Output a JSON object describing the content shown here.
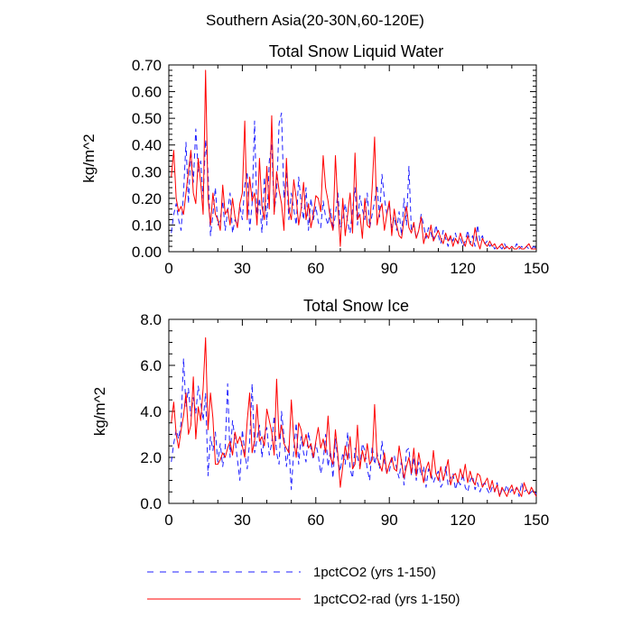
{
  "colors": {
    "blue": "#1f1fff",
    "red": "#ff0000",
    "axis": "#000000"
  },
  "chart_data": {
    "title": "Southern Asia(20-30N,60-120E)",
    "legend": {
      "placement": "bottom",
      "items": [
        {
          "label": "1pctCO2 (yrs 1-150)",
          "color": "#1f1fff",
          "style": "dashed"
        },
        {
          "label": "1pctCO2-rad (yrs 1-150)",
          "color": "#ff0000",
          "style": "solid"
        }
      ]
    },
    "panels": [
      {
        "type": "line",
        "title": "Total Snow Liquid Water",
        "ylabel": "kg/m^2",
        "xlim": [
          0,
          150
        ],
        "ylim": [
          0,
          0.7
        ],
        "xticks": [
          0,
          30,
          60,
          90,
          120,
          150
        ],
        "yticks": [
          0,
          0.1,
          0.2,
          0.3,
          0.4,
          0.5,
          0.6,
          0.7
        ],
        "ytick_labels": [
          "0.00",
          "0.10",
          "0.20",
          "0.30",
          "0.40",
          "0.50",
          "0.60",
          "0.70"
        ],
        "x_start": 1,
        "series": [
          {
            "style": "dashed",
            "color": "#1f1fff",
            "values": [
              0.07,
              0.14,
              0.18,
              0.12,
              0.08,
              0.22,
              0.41,
              0.18,
              0.38,
              0.26,
              0.46,
              0.3,
              0.34,
              0.2,
              0.42,
              0.3,
              0.06,
              0.14,
              0.24,
              0.1,
              0.12,
              0.19,
              0.08,
              0.15,
              0.22,
              0.07,
              0.12,
              0.1,
              0.17,
              0.12,
              0.25,
              0.3,
              0.08,
              0.18,
              0.49,
              0.12,
              0.2,
              0.07,
              0.28,
              0.1,
              0.34,
              0.4,
              0.15,
              0.22,
              0.48,
              0.52,
              0.2,
              0.3,
              0.12,
              0.22,
              0.16,
              0.1,
              0.28,
              0.18,
              0.12,
              0.24,
              0.08,
              0.2,
              0.12,
              0.17,
              0.11,
              0.09,
              0.19,
              0.13,
              0.1,
              0.16,
              0.08,
              0.14,
              0.22,
              0.09,
              0.12,
              0.18,
              0.11,
              0.07,
              0.16,
              0.24,
              0.1,
              0.21,
              0.16,
              0.12,
              0.22,
              0.09,
              0.14,
              0.19,
              0.25,
              0.13,
              0.29,
              0.2,
              0.14,
              0.18,
              0.09,
              0.13,
              0.08,
              0.15,
              0.06,
              0.2,
              0.1,
              0.32,
              0.08,
              0.1,
              0.05,
              0.08,
              0.14,
              0.1,
              0.05,
              0.09,
              0.07,
              0.04,
              0.1,
              0.06,
              0.03,
              0.08,
              0.05,
              0.02,
              0.06,
              0.04,
              0.07,
              0.03,
              0.05,
              0.02,
              0.04,
              0.08,
              0.03,
              0.06,
              0.02,
              0.1,
              0.04,
              0.06,
              0.03,
              0.04,
              0.02,
              0.03,
              0.01,
              0.02,
              0.02,
              0.01,
              0.03,
              0.01,
              0.01,
              0.02,
              0.01,
              0.03,
              0.01,
              0.02,
              0.01,
              0.02,
              0.01,
              0.01,
              0.02,
              0.01
            ]
          },
          {
            "style": "solid",
            "color": "#ff0000",
            "values": [
              0.28,
              0.38,
              0.2,
              0.15,
              0.17,
              0.14,
              0.22,
              0.3,
              0.38,
              0.22,
              0.18,
              0.35,
              0.26,
              0.14,
              0.68,
              0.2,
              0.1,
              0.22,
              0.14,
              0.12,
              0.08,
              0.25,
              0.14,
              0.16,
              0.1,
              0.2,
              0.13,
              0.09,
              0.18,
              0.22,
              0.49,
              0.12,
              0.28,
              0.19,
              0.22,
              0.1,
              0.35,
              0.17,
              0.12,
              0.32,
              0.16,
              0.51,
              0.14,
              0.3,
              0.23,
              0.18,
              0.08,
              0.35,
              0.16,
              0.12,
              0.27,
              0.2,
              0.1,
              0.16,
              0.26,
              0.12,
              0.18,
              0.09,
              0.14,
              0.21,
              0.2,
              0.15,
              0.36,
              0.24,
              0.19,
              0.12,
              0.08,
              0.36,
              0.17,
              0.02,
              0.2,
              0.06,
              0.14,
              0.22,
              0.07,
              0.37,
              0.12,
              0.14,
              0.05,
              0.2,
              0.1,
              0.09,
              0.24,
              0.43,
              0.1,
              0.15,
              0.18,
              0.08,
              0.14,
              0.19,
              0.06,
              0.16,
              0.1,
              0.06,
              0.05,
              0.12,
              0.17,
              0.09,
              0.07,
              0.11,
              0.05,
              0.08,
              0.13,
              0.03,
              0.07,
              0.05,
              0.1,
              0.04,
              0.06,
              0.08,
              0.05,
              0.03,
              0.07,
              0.04,
              0.06,
              0.02,
              0.05,
              0.03,
              0.07,
              0.04,
              0.02,
              0.06,
              0.03,
              0.02,
              0.09,
              0.04,
              0.01,
              0.05,
              0.03,
              0.02,
              0.04,
              0.02,
              0.03,
              0.01,
              0.02,
              0.03,
              0.01,
              0.02,
              0.01,
              0.02,
              0.01,
              0.01,
              0.02,
              0.01,
              0.01,
              0.02,
              0.03,
              0.01,
              0.01,
              0.01
            ]
          }
        ]
      },
      {
        "type": "line",
        "title": "Total Snow Ice",
        "ylabel": "kg/m^2",
        "xlim": [
          0,
          150
        ],
        "ylim": [
          0,
          8
        ],
        "xticks": [
          0,
          30,
          60,
          90,
          120,
          150
        ],
        "yticks": [
          0,
          2,
          4,
          6,
          8
        ],
        "ytick_labels": [
          "0.0",
          "2.0",
          "4.0",
          "6.0",
          "8.0"
        ],
        "x_start": 1,
        "series": [
          {
            "style": "dashed",
            "color": "#1f1fff",
            "values": [
              1.8,
              2.6,
              3.2,
              2.8,
              3.5,
              6.3,
              4.2,
              5.0,
              3.8,
              4.6,
              3.9,
              5.1,
              4.4,
              3.6,
              4.8,
              1.2,
              2.9,
              2.3,
              3.1,
              1.8,
              2.6,
              1.6,
              2.4,
              5.2,
              2.0,
              3.6,
              2.8,
              1.9,
              1.0,
              3.2,
              2.2,
              1.5,
              2.7,
              5.2,
              2.2,
              2.8,
              3.4,
              2.0,
              2.9,
              3.3,
              2.1,
              2.6,
              3.8,
              2.2,
              1.7,
              4.0,
              2.9,
              1.6,
              2.5,
              0.6,
              2.3,
              3.5,
              1.7,
              2.9,
              2.2,
              1.8,
              3.1,
              2.4,
              1.9,
              2.6,
              2.1,
              1.3,
              1.8,
              3.0,
              1.6,
              2.3,
              1.1,
              2.8,
              1.9,
              1.4,
              2.2,
              1.7,
              3.1,
              1.5,
              1.1,
              2.4,
              2.0,
              1.6,
              2.6,
              2.3,
              1.5,
              1.0,
              2.5,
              1.7,
              2.2,
              1.5,
              2.7,
              1.8,
              1.3,
              1.4,
              1.9,
              2.1,
              1.5,
              1.1,
              1.9,
              0.8,
              2.3,
              2.4,
              1.2,
              2.0,
              1.0,
              1.8,
              1.2,
              1.6,
              0.7,
              1.5,
              1.3,
              0.9,
              1.2,
              1.4,
              0.7,
              0.9,
              1.6,
              0.8,
              1.1,
              1.3,
              0.6,
              1.0,
              0.8,
              1.3,
              0.7,
              0.5,
              1.0,
              1.2,
              0.6,
              0.9,
              0.5,
              0.8,
              0.9,
              0.6,
              0.4,
              0.7,
              0.5,
              0.9,
              0.3,
              0.6,
              0.5,
              0.8,
              0.4,
              0.6,
              0.5,
              0.7,
              0.3,
              0.9,
              0.5,
              0.6,
              0.4,
              0.5,
              0.6,
              0.4
            ]
          },
          {
            "style": "solid",
            "color": "#ff0000",
            "values": [
              3.5,
              4.4,
              3.0,
              2.4,
              3.2,
              3.8,
              4.8,
              3.0,
              3.4,
              5.5,
              2.8,
              4.2,
              3.6,
              5.0,
              7.2,
              3.2,
              4.8,
              3.7,
              1.7,
              1.7,
              1.9,
              2.2,
              2.0,
              2.4,
              2.7,
              2.1,
              3.1,
              2.6,
              2.9,
              2.5,
              2.0,
              3.6,
              4.8,
              2.2,
              2.7,
              4.3,
              2.7,
              2.9,
              2.5,
              4.1,
              3.6,
              3.1,
              2.1,
              5.4,
              2.8,
              3.4,
              2.6,
              2.4,
              2.2,
              4.5,
              2.8,
              2.0,
              3.5,
              3.2,
              2.5,
              3.0,
              2.4,
              2.6,
              2.0,
              2.7,
              3.3,
              2.4,
              2.8,
              2.2,
              3.8,
              2.0,
              1.7,
              3.2,
              2.1,
              0.7,
              1.6,
              2.5,
              1.9,
              2.9,
              1.5,
              1.7,
              3.4,
              1.5,
              2.3,
              1.8,
              2.6,
              1.7,
              1.9,
              4.3,
              2.0,
              1.7,
              1.4,
              2.2,
              1.3,
              1.7,
              2.0,
              1.5,
              1.4,
              2.5,
              1.8,
              1.1,
              1.6,
              2.0,
              1.3,
              2.4,
              1.2,
              2.2,
              1.6,
              0.9,
              1.5,
              1.8,
              1.1,
              2.3,
              1.3,
              1.0,
              1.6,
              1.0,
              1.4,
              1.9,
              0.8,
              1.2,
              1.3,
              0.9,
              1.5,
              1.1,
              1.7,
              0.9,
              1.4,
              1.0,
              0.8,
              1.3,
              1.2,
              0.7,
              0.9,
              1.1,
              0.6,
              1.0,
              0.5,
              0.8,
              0.3,
              0.7,
              0.5,
              0.3,
              0.6,
              0.8,
              0.4,
              0.7,
              0.5,
              0.3,
              0.9,
              0.6,
              0.4,
              0.7,
              0.5,
              0.3
            ]
          }
        ]
      }
    ]
  }
}
